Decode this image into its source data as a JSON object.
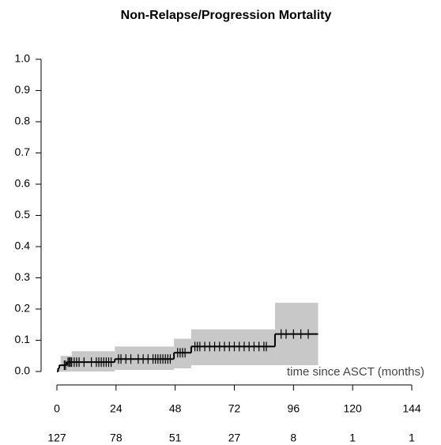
{
  "chart_data": {
    "type": "step",
    "title": "Non-Relapse/Progression Mortality",
    "x_label": "time since ASCT (months)",
    "xlim": [
      0,
      144
    ],
    "xticks": [
      0,
      24,
      48,
      72,
      96,
      120,
      144
    ],
    "ylim": [
      0,
      1
    ],
    "yticks": [
      {
        "value": 0,
        "label": "0.0"
      },
      0.1,
      0.2,
      0.3,
      0.4,
      0.5,
      0.6,
      0.7,
      0.8,
      0.9,
      {
        "value": 1,
        "label": "1.0"
      }
    ],
    "series": [
      {
        "color": "#000000",
        "x": [
          0,
          0.5,
          1,
          4,
          23.5,
          47.5,
          54.5,
          88.5,
          106
        ],
        "values": [
          0,
          0.01,
          0.02,
          0.03,
          0.04,
          0.06,
          0.08,
          0.12,
          0.12
        ]
      }
    ],
    "band": {
      "color": "#c8c8c8",
      "x": [
        0,
        1.5,
        6,
        23.5,
        47.5,
        54.5,
        88.5,
        106
      ],
      "lower": [
        0,
        0,
        0,
        0.005,
        0.01,
        0.02,
        0.02,
        0.02
      ],
      "upper": [
        0.01,
        0.05,
        0.065,
        0.08,
        0.105,
        0.135,
        0.22,
        0.22
      ]
    },
    "censored": {
      "x": [
        3,
        3.5,
        4.5,
        5,
        5.5,
        6,
        7,
        8,
        9,
        11,
        14,
        16,
        17,
        18,
        19,
        20,
        21,
        22,
        25,
        26,
        28,
        30,
        33,
        35,
        37,
        39,
        40,
        41,
        42,
        43,
        44,
        45,
        46,
        49,
        50,
        51,
        52,
        56,
        57,
        58,
        60,
        62,
        64,
        66,
        68,
        70,
        72,
        74,
        76,
        78,
        80,
        82,
        84,
        85,
        91,
        93,
        96,
        99,
        102
      ],
      "values": [
        0.02,
        0.02,
        0.03,
        0.03,
        0.03,
        0.03,
        0.03,
        0.03,
        0.03,
        0.03,
        0.03,
        0.03,
        0.03,
        0.03,
        0.03,
        0.03,
        0.03,
        0.03,
        0.04,
        0.04,
        0.04,
        0.04,
        0.04,
        0.04,
        0.04,
        0.04,
        0.04,
        0.04,
        0.04,
        0.04,
        0.04,
        0.04,
        0.04,
        0.06,
        0.06,
        0.06,
        0.06,
        0.08,
        0.08,
        0.08,
        0.08,
        0.08,
        0.08,
        0.08,
        0.08,
        0.08,
        0.08,
        0.08,
        0.08,
        0.08,
        0.08,
        0.08,
        0.08,
        0.08,
        0.12,
        0.12,
        0.12,
        0.12,
        0.12
      ]
    },
    "number_at_risk": [
      127,
      78,
      51,
      27,
      8,
      1,
      1
    ]
  }
}
